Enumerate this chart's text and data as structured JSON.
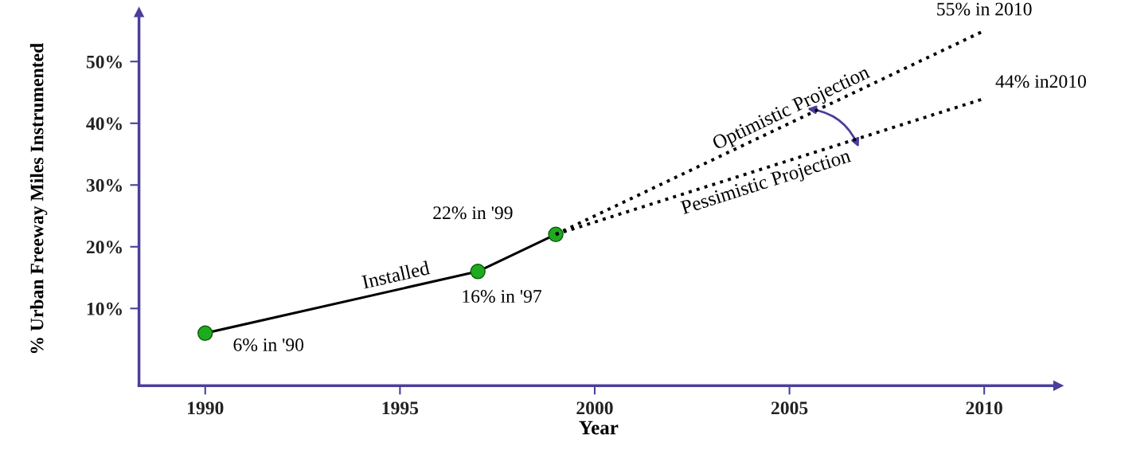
{
  "chart_data": {
    "type": "line",
    "xlabel": "Year",
    "ylabel": "% Urban Freeway Miles Instrumented",
    "xlim": [
      1988.3,
      2011.9
    ],
    "ylim": [
      -2.5,
      58
    ],
    "xticks": [
      1990,
      1995,
      2000,
      2005,
      2010
    ],
    "yticks": [
      {
        "value": 10,
        "label": "10%"
      },
      {
        "value": 20,
        "label": "20%"
      },
      {
        "value": 30,
        "label": "30%"
      },
      {
        "value": 40,
        "label": "40%"
      },
      {
        "value": 50,
        "label": "50%"
      }
    ],
    "grid": false,
    "series": [
      {
        "name": "Installed",
        "color": "#000000",
        "x": [
          1990,
          1997,
          1999
        ],
        "values": [
          6,
          16,
          22
        ],
        "marker": "circle",
        "line_style": "solid"
      },
      {
        "name": "Optimistic Projection",
        "color": "#000000",
        "x": [
          1999,
          2010
        ],
        "values": [
          22,
          55
        ],
        "marker": "none",
        "line_style": "dotted"
      },
      {
        "name": "Pessimistic Projection",
        "color": "#000000",
        "x": [
          1999,
          2002,
          2005,
          2010
        ],
        "values": [
          22,
          28,
          34,
          44
        ],
        "marker": "none",
        "line_style": "dotted"
      }
    ],
    "annotations": [
      {
        "text": "6% in '90",
        "x": 1990,
        "y": 6
      },
      {
        "text": "16% in '97",
        "x": 1997,
        "y": 16
      },
      {
        "text": "22% in '99",
        "x": 1999,
        "y": 22
      },
      {
        "text": "55% in 2010",
        "x": 2010,
        "y": 55
      },
      {
        "text": "44% in2010",
        "x": 2010,
        "y": 44
      }
    ]
  }
}
